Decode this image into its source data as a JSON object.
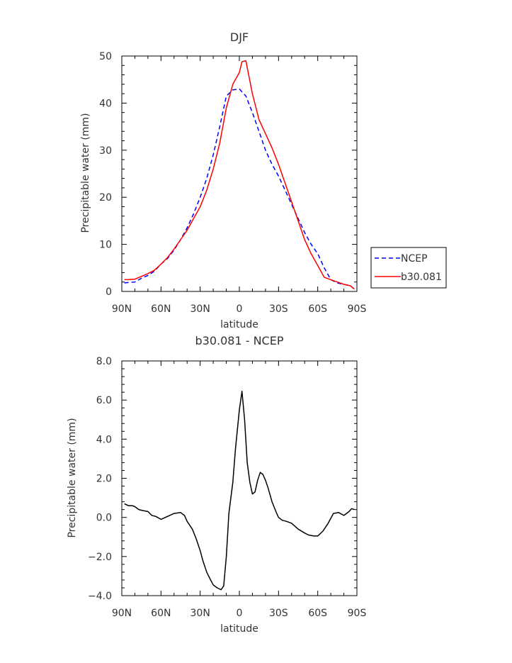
{
  "chart_data": [
    {
      "type": "line",
      "title": "DJF",
      "xlabel": "latitude",
      "ylabel": "Precipitable water (mm)",
      "xlim": [
        90,
        -90
      ],
      "ylim": [
        0,
        50
      ],
      "xticks": [
        90,
        60,
        30,
        0,
        -30,
        -60,
        -90
      ],
      "xtick_labels": [
        "90N",
        "60N",
        "30N",
        "0",
        "30S",
        "60S",
        "90S"
      ],
      "yticks": [
        0,
        10,
        20,
        30,
        40,
        50
      ],
      "ytick_labels": [
        "0",
        "10",
        "20",
        "30",
        "40",
        "50"
      ],
      "legend": "right",
      "series": [
        {
          "name": "NCEP",
          "color": "#0000ff",
          "dash": "dashed",
          "x": [
            88,
            85,
            80,
            75,
            70,
            65,
            60,
            55,
            50,
            45,
            40,
            35,
            30,
            25,
            20,
            15,
            10,
            5,
            0,
            -5,
            -10,
            -15,
            -20,
            -25,
            -30,
            -35,
            -40,
            -45,
            -50,
            -55,
            -60,
            -65,
            -70,
            -75,
            -80,
            -85,
            -88
          ],
          "y": [
            1.8,
            1.9,
            2.0,
            2.8,
            3.4,
            4.3,
            5.8,
            7.0,
            8.8,
            11.0,
            13.5,
            16.5,
            20.0,
            24.0,
            29.0,
            35.0,
            41.5,
            42.8,
            43.0,
            41.5,
            38.0,
            34.0,
            30.0,
            27.0,
            24.5,
            21.5,
            18.5,
            15.5,
            12.5,
            10.0,
            8.0,
            5.0,
            2.5,
            1.8,
            1.5,
            1.2,
            0.5
          ]
        },
        {
          "name": "b30.081",
          "color": "#ff0000",
          "dash": "solid",
          "x": [
            88,
            85,
            80,
            75,
            70,
            65,
            60,
            55,
            50,
            45,
            40,
            35,
            30,
            25,
            20,
            15,
            10,
            5,
            2,
            0,
            -2,
            -5,
            -10,
            -15,
            -20,
            -25,
            -30,
            -35,
            -40,
            -45,
            -50,
            -55,
            -60,
            -65,
            -70,
            -75,
            -80,
            -85,
            -88
          ],
          "y": [
            2.5,
            2.5,
            2.6,
            3.2,
            3.8,
            4.5,
            5.8,
            7.2,
            9.0,
            11.0,
            13.0,
            15.5,
            18.0,
            21.5,
            26.0,
            31.5,
            39.0,
            44.0,
            45.5,
            46.5,
            48.8,
            49.0,
            42.0,
            36.5,
            33.5,
            30.5,
            27.0,
            23.0,
            19.0,
            15.0,
            11.0,
            8.0,
            5.5,
            3.0,
            2.5,
            2.0,
            1.5,
            1.2,
            0.5
          ]
        }
      ]
    },
    {
      "type": "line",
      "title": "b30.081 - NCEP",
      "xlabel": "latitude",
      "ylabel": "Precipitable water (mm)",
      "xlim": [
        90,
        -90
      ],
      "ylim": [
        -4,
        8
      ],
      "xticks": [
        90,
        60,
        30,
        0,
        -30,
        -60,
        -90
      ],
      "xtick_labels": [
        "90N",
        "60N",
        "30N",
        "0",
        "30S",
        "60S",
        "90S"
      ],
      "yticks": [
        -4,
        -2,
        0,
        2,
        4,
        6,
        8
      ],
      "ytick_labels": [
        "−4.0",
        "−2.0",
        "0.0",
        "2.0",
        "4.0",
        "6.0",
        "8.0"
      ],
      "series": [
        {
          "color": "#000000",
          "dash": "solid",
          "x": [
            88,
            85,
            82,
            80,
            77,
            74,
            70,
            67,
            64,
            60,
            55,
            50,
            45,
            42,
            40,
            36,
            33,
            30,
            28,
            25,
            22,
            20,
            17,
            14,
            12,
            10,
            8,
            5,
            3,
            0,
            -2,
            -4,
            -6,
            -8,
            -10,
            -12,
            -14,
            -16,
            -18,
            -20,
            -22,
            -25,
            -28,
            -30,
            -33,
            -36,
            -40,
            -45,
            -50,
            -53,
            -57,
            -60,
            -64,
            -68,
            -72,
            -76,
            -80,
            -84,
            -86,
            -88
          ],
          "y": [
            0.7,
            0.6,
            0.6,
            0.55,
            0.4,
            0.35,
            0.3,
            0.1,
            0.05,
            -0.1,
            0.05,
            0.2,
            0.25,
            0.1,
            -0.2,
            -0.6,
            -1.1,
            -1.7,
            -2.2,
            -2.8,
            -3.2,
            -3.45,
            -3.6,
            -3.7,
            -3.5,
            -2.0,
            0.2,
            1.8,
            3.5,
            5.5,
            6.45,
            5.0,
            2.8,
            1.8,
            1.2,
            1.3,
            1.9,
            2.3,
            2.2,
            1.9,
            1.5,
            0.8,
            0.3,
            0.0,
            -0.15,
            -0.2,
            -0.3,
            -0.6,
            -0.8,
            -0.9,
            -0.95,
            -0.95,
            -0.7,
            -0.3,
            0.2,
            0.25,
            0.1,
            0.3,
            0.45,
            0.4
          ]
        }
      ]
    }
  ]
}
